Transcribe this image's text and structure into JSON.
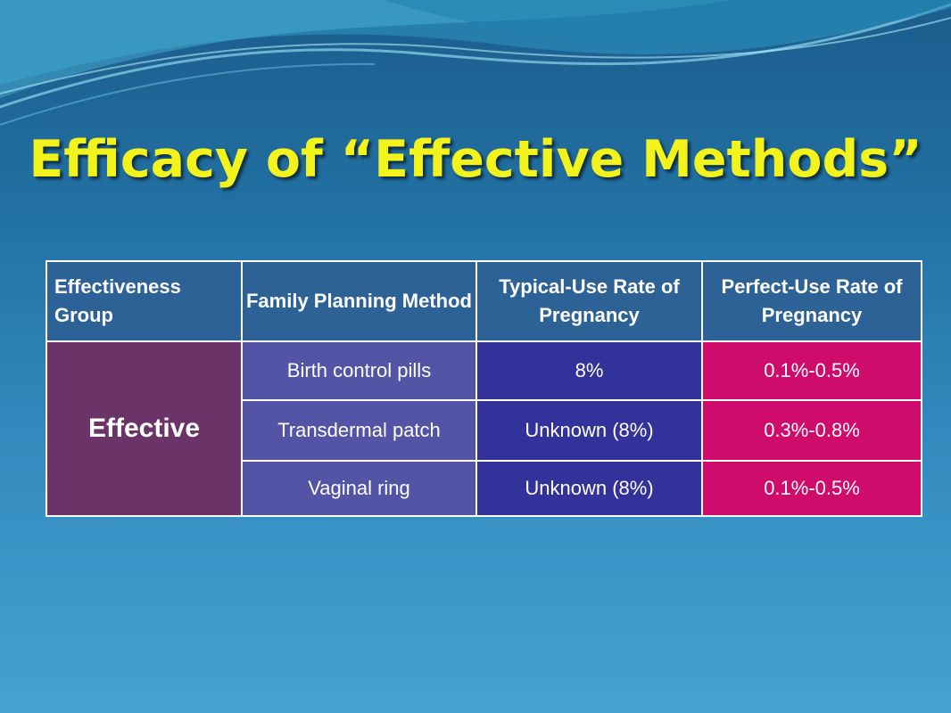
{
  "slide": {
    "title": "Efficacy of  “Effective Methods”"
  },
  "table": {
    "headers": [
      "Effectiveness Group",
      "Family Planning Method",
      "Typical-Use Rate of Pregnancy",
      "Perfect-Use Rate of Pregnancy"
    ],
    "group": "Effective",
    "rows": [
      {
        "method": "Birth control pills",
        "typical": "8%",
        "perfect": "0.1%-0.5%"
      },
      {
        "method": "Transdermal patch",
        "typical": "Unknown (8%)",
        "perfect": "0.3%-0.8%"
      },
      {
        "method": "Vaginal ring",
        "typical": "Unknown (8%)",
        "perfect": "0.1%-0.5%"
      }
    ]
  },
  "colors": {
    "title": "#f2f21c",
    "header_bg": "#2d6296",
    "group_bg": "#6b3468",
    "method_bg": "#5454a6",
    "typical_bg": "#33319a",
    "perfect_bg": "#cf0b6b"
  }
}
